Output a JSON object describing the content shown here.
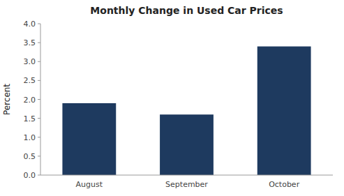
{
  "chart_data": {
    "type": "bar",
    "title": "Monthly Change in Used Car Prices",
    "categories": [
      "August",
      "September",
      "October"
    ],
    "values": [
      1.9,
      1.6,
      3.4
    ],
    "color": "#1e3a5f",
    "ylabel": "Percent",
    "ylim": [
      0,
      4.0
    ],
    "yticks": [
      {
        "value": 0.0,
        "label": "0.0"
      },
      0.5,
      {
        "value": 1.0,
        "label": "1.0"
      },
      1.5,
      {
        "value": 2.0,
        "label": "2.0"
      },
      2.5,
      {
        "value": 3.0,
        "label": "3.0"
      },
      3.5,
      {
        "value": 4.0,
        "label": "4.0"
      }
    ],
    "grid": false
  }
}
